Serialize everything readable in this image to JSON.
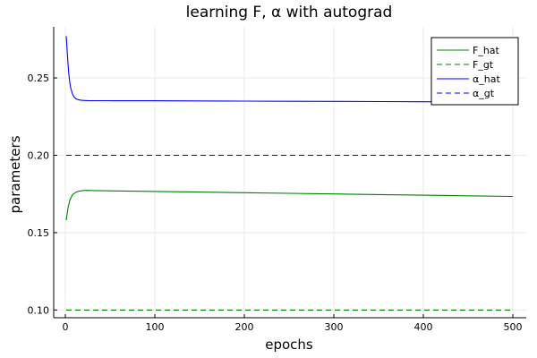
{
  "chart_data": {
    "type": "line",
    "title": "learning F, α with autograd",
    "xlabel": "epochs",
    "ylabel": "parameters",
    "xlim": [
      -13,
      515
    ],
    "ylim": [
      0.095,
      0.283
    ],
    "xticks": [
      0,
      100,
      200,
      300,
      400,
      500
    ],
    "xtick_labels": [
      "0",
      "100",
      "200",
      "300",
      "400",
      "500"
    ],
    "yticks": [
      0.1,
      0.15,
      0.2,
      0.25
    ],
    "ytick_labels": [
      "0.10",
      "0.15",
      "0.20",
      "0.25"
    ],
    "grid": true,
    "legend_position": "top-right",
    "series": [
      {
        "name": "F_hat",
        "color": "#008000",
        "style": "solid",
        "x": [
          1,
          3,
          5,
          8,
          12,
          16,
          20,
          25,
          30,
          40,
          50,
          75,
          100,
          150,
          200,
          250,
          300,
          350,
          400,
          450,
          500
        ],
        "y": [
          0.158,
          0.166,
          0.171,
          0.1745,
          0.1762,
          0.1769,
          0.1772,
          0.1773,
          0.1772,
          0.1771,
          0.177,
          0.1768,
          0.1766,
          0.1762,
          0.1758,
          0.1754,
          0.175,
          0.1746,
          0.1742,
          0.1738,
          0.1734
        ]
      },
      {
        "name": "F_gt",
        "color": "#008000",
        "style": "dashed",
        "x": [
          1,
          500
        ],
        "y": [
          0.1,
          0.1
        ]
      },
      {
        "name": "α_hat",
        "color": "#0000ff",
        "style": "solid",
        "x": [
          1,
          2,
          3,
          4,
          5,
          6,
          8,
          10,
          12,
          15,
          18,
          22,
          26,
          30,
          40,
          50,
          75,
          100,
          150,
          200,
          250,
          300,
          350,
          400,
          450,
          500
        ],
        "y": [
          0.277,
          0.268,
          0.259,
          0.252,
          0.247,
          0.2435,
          0.2395,
          0.2375,
          0.2365,
          0.2358,
          0.2355,
          0.2354,
          0.2353,
          0.2353,
          0.2353,
          0.2353,
          0.2352,
          0.2352,
          0.2351,
          0.235,
          0.2349,
          0.2348,
          0.2347,
          0.2346,
          0.2345,
          0.2344
        ]
      },
      {
        "name": "α_gt",
        "color": "#0000ff",
        "style": "dashed",
        "x": [
          1,
          500
        ],
        "y": [
          0.2,
          0.2
        ]
      }
    ]
  }
}
